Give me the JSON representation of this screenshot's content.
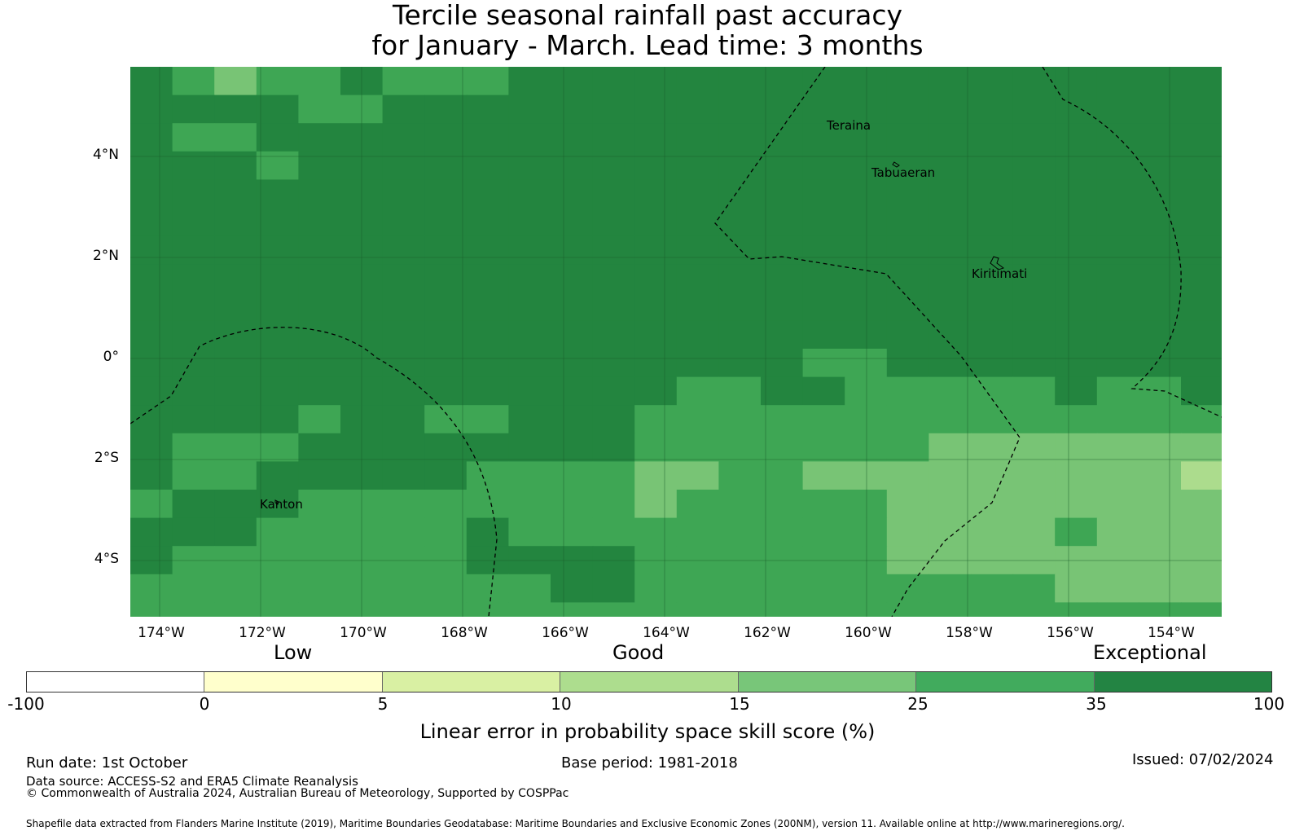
{
  "title": {
    "line1": "Tercile seasonal rainfall past accuracy",
    "line2": "for January - March. Lead time: 3 months"
  },
  "map": {
    "lat_labels": [
      "4°N",
      "2°N",
      "0°",
      "2°S",
      "4°S"
    ],
    "lon_labels": [
      "174°W",
      "172°W",
      "170°W",
      "168°W",
      "166°W",
      "164°W",
      "162°W",
      "160°W",
      "158°W",
      "156°W",
      "154°W"
    ],
    "places": [
      "Teraina",
      "Tabuaeran",
      "Kiritimati",
      "Kanton"
    ],
    "colors": {
      "c35_100": "#23853f",
      "c25_35": "#3ea654",
      "c15_25": "#78c475",
      "c10_15": "#acdc8d",
      "grid": "#1a5c2c",
      "boundary": "#000000"
    }
  },
  "colorbar": {
    "categories": [
      "Low",
      "Good",
      "Exceptional"
    ],
    "ticks": [
      "-100",
      "0",
      "5",
      "10",
      "15",
      "25",
      "35",
      "100"
    ],
    "segment_colors": [
      "#ffffff",
      "#ffffcc",
      "#d9f0a3",
      "#addd8e",
      "#78c679",
      "#41ab5d",
      "#238443"
    ],
    "label": "Linear error in probability space skill score (%)"
  },
  "footer": {
    "run_date": "Run date: 1st October",
    "base_period": "Base period: 1981-2018",
    "issued": "Issued: 07/02/2024",
    "data_source": "Data source: ACCESS-S2 and ERA5 Climate Reanalysis",
    "copyright": "© Commonwealth of Australia 2024, Australian Bureau of Meteorology, Supported by COSPPac",
    "shapefile": "Shapefile data extracted from Flanders Marine Institute (2019), Maritime Boundaries Geodatabase: Maritime Boundaries and Exclusive Economic Zones (200NM), version 11. Available online at http://www.marineregions.org/."
  }
}
